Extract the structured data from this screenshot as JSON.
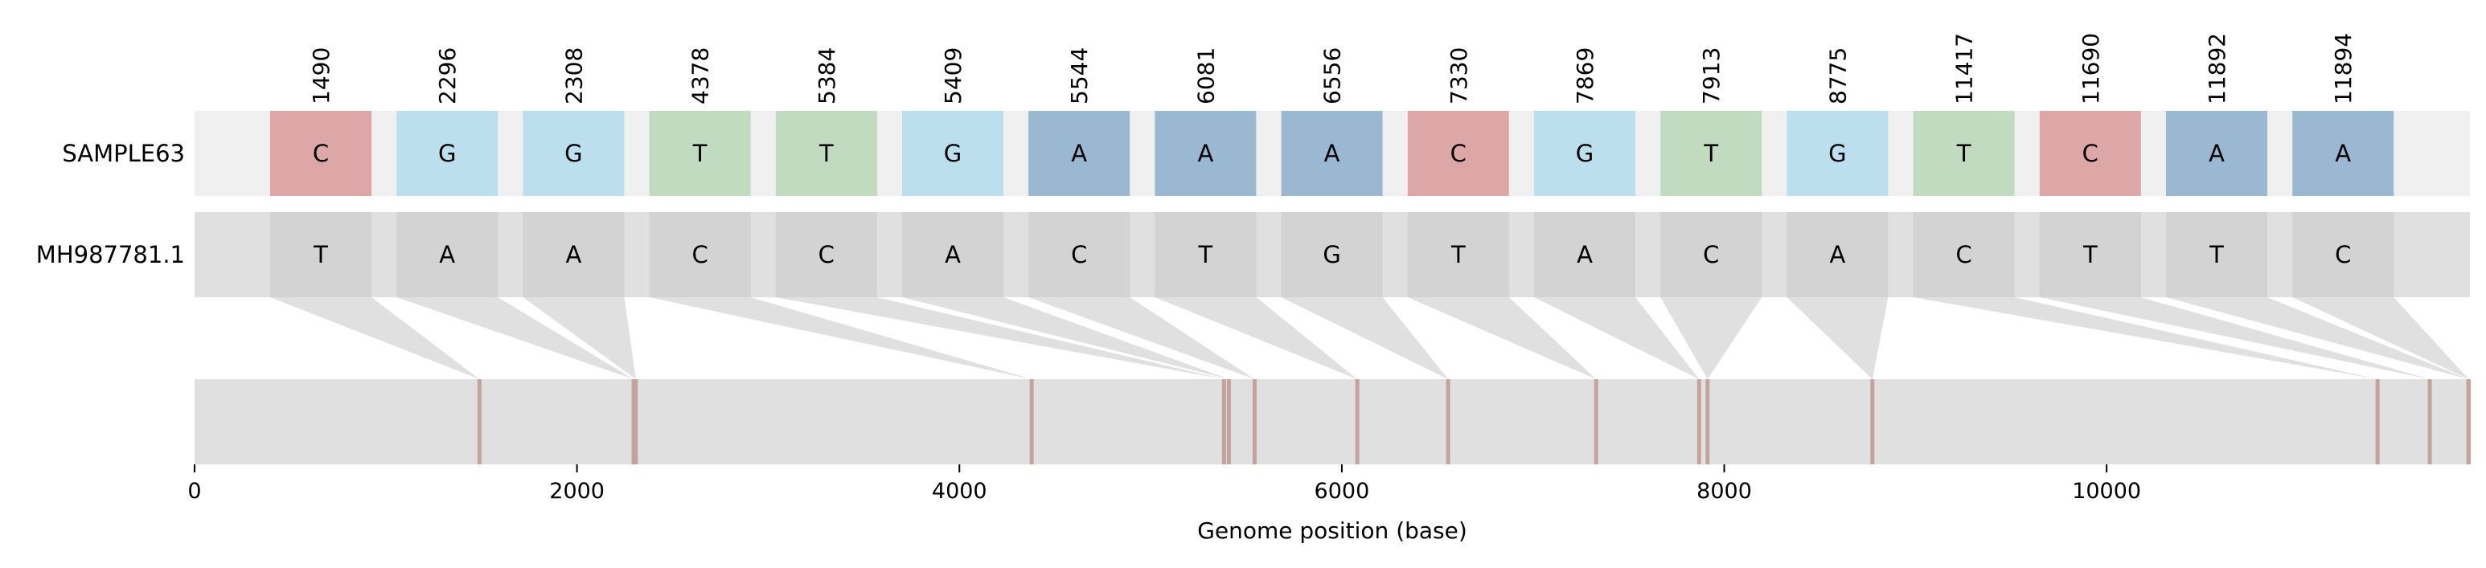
{
  "chart_data": {
    "type": "snp-alignment",
    "xlabel": "Genome position (base)",
    "xlim": [
      0,
      11900
    ],
    "xticks": [
      0,
      2000,
      4000,
      6000,
      8000,
      10000
    ],
    "rows": [
      {
        "label": "SAMPLE63",
        "bases": [
          "C",
          "G",
          "G",
          "T",
          "T",
          "G",
          "A",
          "A",
          "A",
          "C",
          "G",
          "T",
          "G",
          "T",
          "C",
          "A",
          "A"
        ]
      },
      {
        "label": "MH987781.1",
        "bases": [
          "T",
          "A",
          "A",
          "C",
          "C",
          "A",
          "C",
          "T",
          "G",
          "T",
          "A",
          "C",
          "A",
          "C",
          "T",
          "T",
          "C"
        ]
      }
    ],
    "positions": [
      1490,
      2296,
      2308,
      4378,
      5384,
      5409,
      5544,
      6081,
      6556,
      7330,
      7869,
      7913,
      8775,
      11417,
      11690,
      11892,
      11894
    ],
    "base_colors": {
      "A": "#9bb8d3",
      "C": "#dea7a7",
      "G": "#bcdfed",
      "T": "#c0dbc0"
    },
    "reference_cell_color": "#d3d3d3",
    "track_background": "#f0f0f0",
    "reference_background": "#e0e0e0",
    "genome_track_color": "#e0e0e0",
    "marker_color": "#c4a39c",
    "connector_color": "#e0e0e0"
  }
}
